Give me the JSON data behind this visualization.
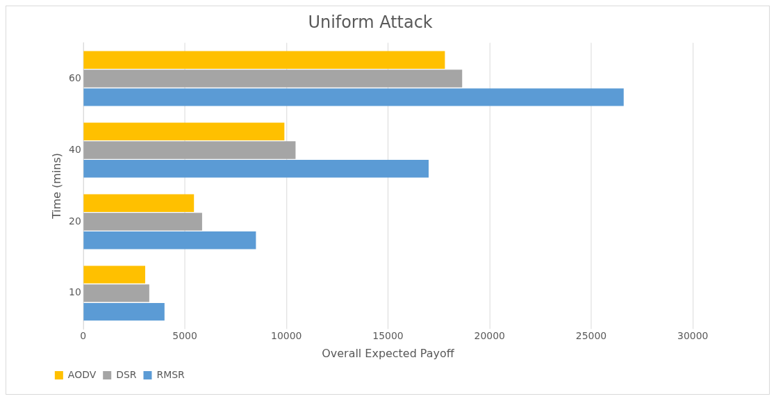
{
  "chart_data": {
    "type": "bar",
    "orientation": "horizontal",
    "title": "Uniform Attack",
    "xlabel": "Overall Expected Payoff",
    "ylabel": "Time (mins)",
    "categories": [
      "60",
      "40",
      "20",
      "10"
    ],
    "series": [
      {
        "name": "AODV",
        "color": "#ffc000",
        "values": [
          17800,
          9900,
          5450,
          3050
        ]
      },
      {
        "name": "DSR",
        "color": "#a5a5a5",
        "values": [
          18650,
          10450,
          5850,
          3250
        ]
      },
      {
        "name": "RMSR",
        "color": "#5b9bd5",
        "values": [
          26600,
          17000,
          8500,
          4000
        ]
      }
    ],
    "xlim": [
      0,
      30000
    ],
    "xticks": [
      0,
      5000,
      10000,
      15000,
      20000,
      25000,
      30000
    ],
    "grid": "x",
    "legend": "bottom left"
  }
}
